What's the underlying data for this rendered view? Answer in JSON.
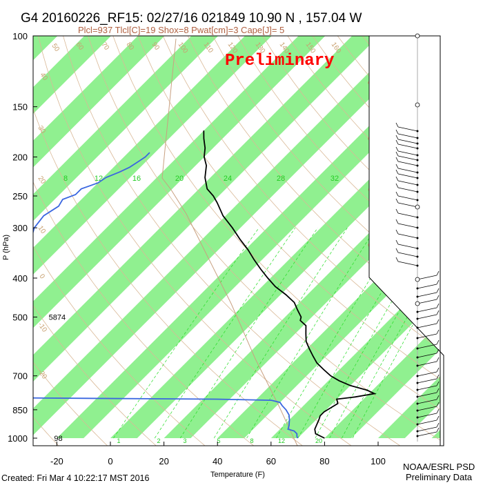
{
  "header": {
    "title": "G4 20160226_RF15: 02/27/16 021849  10.90 N , 157.04 W",
    "subtitle": "Plcl=937 Tlcl[C]=19 Shox=8 Pwat[cm]=3 Cape[J]= 5",
    "watermark": "Preliminary"
  },
  "footer": {
    "created": "Created: Fri Mar  4 10:22:17 MST 2016",
    "org": "NOAA/ESRL PSD",
    "data_note": "Preliminary Data"
  },
  "chart_data": {
    "type": "skew-t",
    "ylabel": "P (hPa)",
    "xlabel": "Temperature (F)",
    "y_scale": "log",
    "ylim": [
      1000,
      100
    ],
    "xlim": [
      -30,
      120
    ],
    "pressure_ticks": [
      "100",
      "150",
      "200",
      "250",
      "300",
      "400",
      "500",
      "700",
      "850",
      "1000"
    ],
    "temperature_ticks": [
      "-20",
      "0",
      "20",
      "40",
      "60",
      "80",
      "100"
    ],
    "isotherm_labels": [
      "50",
      "60",
      "70",
      "80",
      "90",
      "100",
      "110",
      "120",
      "130",
      "140",
      "150",
      "160",
      "40",
      "30",
      "20",
      "10",
      "0",
      "-10",
      "-20"
    ],
    "isotherm_right_labels": [
      "30",
      "20",
      "10",
      "0",
      "10",
      "20",
      "30"
    ],
    "mixing_ratio_labels": [
      "8",
      "12",
      "16",
      "20",
      "24",
      "28",
      "32"
    ],
    "mixing_ratio_bottom_labels": [
      "1",
      "2",
      "3",
      "5",
      "8",
      "12",
      "20"
    ],
    "annotations": [
      {
        "text": "5874",
        "p": 500,
        "temp_f": -22
      },
      {
        "text": "98",
        "p": 1000,
        "temp_f": -20
      }
    ],
    "temperature_profile": [
      {
        "p": 1000,
        "t": 80
      },
      {
        "p": 975,
        "t": 75
      },
      {
        "p": 950,
        "t": 73
      },
      {
        "p": 925,
        "t": 72
      },
      {
        "p": 900,
        "t": 71
      },
      {
        "p": 880,
        "t": 70
      },
      {
        "p": 860,
        "t": 70
      },
      {
        "p": 840,
        "t": 71
      },
      {
        "p": 820,
        "t": 72
      },
      {
        "p": 800,
        "t": 70
      },
      {
        "p": 790,
        "t": 76
      },
      {
        "p": 775,
        "t": 82
      },
      {
        "p": 760,
        "t": 78
      },
      {
        "p": 740,
        "t": 70
      },
      {
        "p": 720,
        "t": 64
      },
      {
        "p": 700,
        "t": 59
      },
      {
        "p": 675,
        "t": 54
      },
      {
        "p": 650,
        "t": 49
      },
      {
        "p": 625,
        "t": 45
      },
      {
        "p": 600,
        "t": 41
      },
      {
        "p": 575,
        "t": 37
      },
      {
        "p": 550,
        "t": 34
      },
      {
        "p": 525,
        "t": 31
      },
      {
        "p": 510,
        "t": 27
      },
      {
        "p": 500,
        "t": 26
      },
      {
        "p": 480,
        "t": 22
      },
      {
        "p": 460,
        "t": 18
      },
      {
        "p": 440,
        "t": 12
      },
      {
        "p": 420,
        "t": 5
      },
      {
        "p": 400,
        "t": -1
      },
      {
        "p": 380,
        "t": -7
      },
      {
        "p": 360,
        "t": -13
      },
      {
        "p": 340,
        "t": -19
      },
      {
        "p": 320,
        "t": -26
      },
      {
        "p": 300,
        "t": -33
      },
      {
        "p": 280,
        "t": -41
      },
      {
        "p": 260,
        "t": -48
      },
      {
        "p": 250,
        "t": -52
      },
      {
        "p": 240,
        "t": -57
      },
      {
        "p": 225,
        "t": -62
      },
      {
        "p": 210,
        "t": -66
      },
      {
        "p": 200,
        "t": -70
      },
      {
        "p": 190,
        "t": -73
      },
      {
        "p": 180,
        "t": -77
      },
      {
        "p": 172,
        "t": -80
      }
    ],
    "dewpoint_profile": [
      {
        "p": 1000,
        "t": 70
      },
      {
        "p": 990,
        "t": 69
      },
      {
        "p": 975,
        "t": 68
      },
      {
        "p": 960,
        "t": 66
      },
      {
        "p": 950,
        "t": 63
      },
      {
        "p": 930,
        "t": 62
      },
      {
        "p": 900,
        "t": 60
      },
      {
        "p": 875,
        "t": 58
      },
      {
        "p": 850,
        "t": 55
      },
      {
        "p": 830,
        "t": 52
      },
      {
        "p": 815,
        "t": 50
      },
      {
        "p": 805,
        "t": 46
      },
      {
        "p": 800,
        "t": 25
      },
      {
        "p": 795,
        "t": -40
      },
      {
        "p": 790,
        "t": -95
      },
      {
        "p": 775,
        "t": -98
      },
      {
        "p": 750,
        "t": -99
      },
      {
        "p": 700,
        "t": -97
      },
      {
        "p": 650,
        "t": -96
      },
      {
        "p": 600,
        "t": -95
      },
      {
        "p": 560,
        "t": -94
      },
      {
        "p": 520,
        "t": -92
      },
      {
        "p": 500,
        "t": -92
      },
      {
        "p": 470,
        "t": -92
      },
      {
        "p": 440,
        "t": -93
      },
      {
        "p": 400,
        "t": -95
      },
      {
        "p": 370,
        "t": -98
      },
      {
        "p": 340,
        "t": -101
      },
      {
        "p": 320,
        "t": -104
      },
      {
        "p": 300,
        "t": -107
      },
      {
        "p": 280,
        "t": -108
      },
      {
        "p": 265,
        "t": -106
      },
      {
        "p": 255,
        "t": -107
      },
      {
        "p": 248,
        "t": -104
      },
      {
        "p": 240,
        "t": -104
      },
      {
        "p": 232,
        "t": -100
      },
      {
        "p": 225,
        "t": -99
      },
      {
        "p": 218,
        "t": -96
      },
      {
        "p": 212,
        "t": -94
      },
      {
        "p": 206,
        "t": -93
      },
      {
        "p": 200,
        "t": -92
      },
      {
        "p": 195,
        "t": -92
      }
    ],
    "colors": {
      "temperature": "#000000",
      "dewpoint": "#3a66e0",
      "isotherm_band": "#90f090",
      "isotherm_label": "#c8a070",
      "dry_adiabat": "#d9b896",
      "mixing_ratio": "#22dd22",
      "parcel": "#c8a080"
    }
  }
}
